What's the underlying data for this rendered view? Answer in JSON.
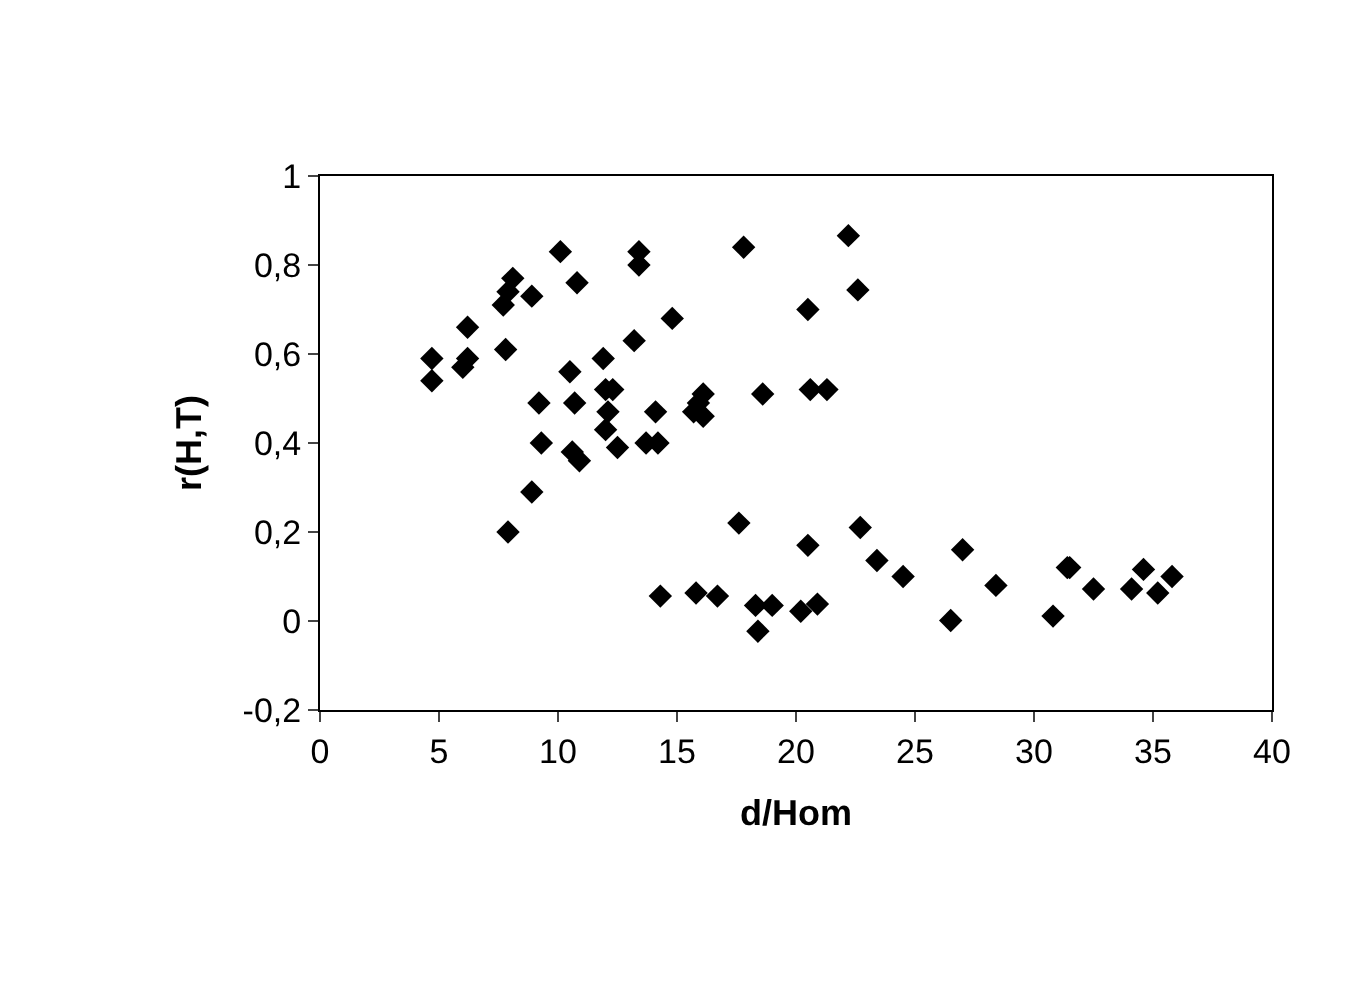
{
  "chart_data": {
    "type": "scatter",
    "xlabel": "d/Hom",
    "ylabel": "r(H,T)",
    "marker": "diamond",
    "xlim": [
      0,
      40
    ],
    "xticks": [
      0,
      5,
      10,
      15,
      20,
      25,
      30,
      35,
      40
    ],
    "ylim": [
      -0.2,
      1
    ],
    "yticks": [
      {
        "value": -0.2,
        "label": "-0,2"
      },
      0,
      {
        "value": 0.2,
        "label": "0,2"
      },
      {
        "value": 0.4,
        "label": "0,4"
      },
      {
        "value": 0.6,
        "label": "0,6"
      },
      {
        "value": 0.8,
        "label": "0,8"
      },
      1
    ],
    "series": [
      {
        "color": "#000000",
        "x": [
          4.7,
          4.7,
          6.2,
          6.0,
          6.2,
          7.8,
          7.7,
          8.1,
          7.9,
          8.9,
          10.1,
          10.8,
          13.4,
          13.4,
          14.8,
          13.2,
          11.9,
          10.5,
          9.2,
          10.7,
          12.0,
          12.3,
          12.1,
          12.0,
          12.5,
          14.1,
          13.7,
          14.2,
          15.7,
          16.1,
          16.1,
          15.9,
          18.6,
          9.3,
          10.6,
          10.9,
          8.9,
          7.9,
          17.6,
          14.3,
          15.8,
          16.7,
          18.3,
          19.0,
          18.4,
          20.2,
          20.9,
          20.5,
          22.7,
          23.4,
          24.5,
          27.0,
          26.5,
          28.4,
          30.8,
          31.4,
          31.5,
          32.5,
          34.1,
          34.6,
          35.2,
          35.8,
          22.2,
          22.6,
          20.5,
          20.6,
          21.3,
          17.8
        ],
        "values": [
          0.59,
          0.54,
          0.66,
          0.57,
          0.59,
          0.61,
          0.71,
          0.77,
          0.74,
          0.73,
          0.83,
          0.76,
          0.83,
          0.8,
          0.68,
          0.63,
          0.59,
          0.56,
          0.49,
          0.49,
          0.52,
          0.52,
          0.47,
          0.43,
          0.39,
          0.47,
          0.4,
          0.4,
          0.47,
          0.51,
          0.46,
          0.49,
          0.51,
          0.4,
          0.38,
          0.36,
          0.29,
          0.2,
          0.22,
          0.056,
          0.063,
          0.056,
          0.035,
          0.035,
          -0.023,
          0.022,
          0.038,
          0.17,
          0.21,
          0.136,
          0.1,
          0.16,
          0.001,
          0.08,
          0.011,
          0.12,
          0.12,
          0.072,
          0.072,
          0.116,
          0.063,
          0.1,
          0.866,
          0.744,
          0.7,
          0.52,
          0.52,
          0.84
        ]
      }
    ]
  }
}
